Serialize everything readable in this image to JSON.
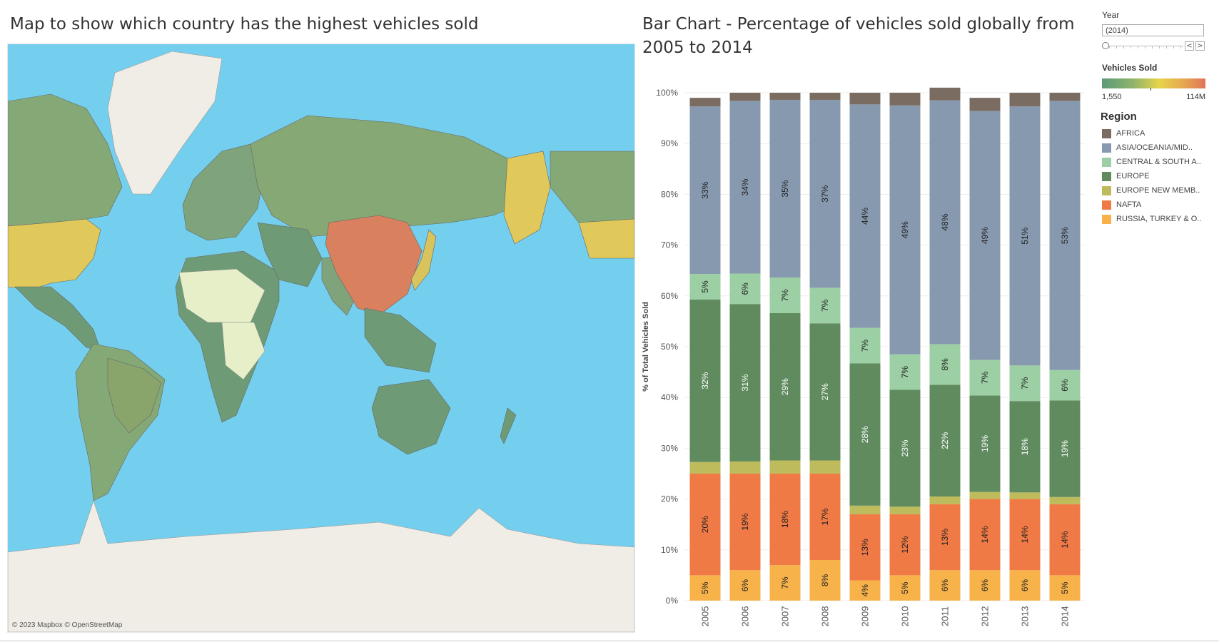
{
  "map": {
    "title": "Map to show which country has the highest vehicles sold",
    "attribution": "© 2023 Mapbox © OpenStreetMap"
  },
  "controls": {
    "year_label": "Year",
    "year_value": "(2014)",
    "prev_symbol": "<",
    "next_symbol": ">",
    "vehicles_sold_label": "Vehicles Sold",
    "vehicles_sold_min": "1,550",
    "vehicles_sold_max": "114M",
    "ramp_colors": [
      "#5b9a78",
      "#8fb36b",
      "#e6d44a",
      "#e6a650",
      "#e0735a"
    ]
  },
  "legend": {
    "title": "Region",
    "items": [
      {
        "label": "AFRICA",
        "color": "#7b6c62"
      },
      {
        "label": "ASIA/OCEANIA/MID..",
        "color": "#8799af"
      },
      {
        "label": "CENTRAL & SOUTH A..",
        "color": "#9ccfa3"
      },
      {
        "label": "EUROPE",
        "color": "#5f8b5f"
      },
      {
        "label": "EUROPE NEW MEMB..",
        "color": "#bdbb5c"
      },
      {
        "label": "NAFTA",
        "color": "#f07a45"
      },
      {
        "label": "RUSSIA, TURKEY & O..",
        "color": "#f8b24a"
      }
    ]
  },
  "chart_data": {
    "type": "bar",
    "stacked": true,
    "title": "Bar Chart - Percentage of vehicles sold globally from 2005 to 2014",
    "xlabel": "",
    "ylabel": "% of Total Vehicles Sold",
    "ylim": [
      0,
      100
    ],
    "yticks": [
      "0%",
      "10%",
      "20%",
      "30%",
      "40%",
      "50%",
      "60%",
      "70%",
      "80%",
      "90%",
      "100%"
    ],
    "categories": [
      "2005",
      "2006",
      "2007",
      "2008",
      "2009",
      "2010",
      "2011",
      "2012",
      "2013",
      "2014"
    ],
    "series": [
      {
        "name": "RUSSIA, TURKEY & O..",
        "color": "#f8b24a",
        "values": [
          5,
          6,
          7,
          8,
          4,
          5,
          6,
          6,
          6,
          5
        ],
        "labels": [
          "5%",
          "6%",
          "7%",
          "8%",
          "4%",
          "5%",
          "6%",
          "6%",
          "6%",
          "5%"
        ]
      },
      {
        "name": "NAFTA",
        "color": "#f07a45",
        "values": [
          20,
          19,
          18,
          17,
          13,
          12,
          13,
          14,
          14,
          14
        ],
        "labels": [
          "20%",
          "19%",
          "18%",
          "17%",
          "13%",
          "12%",
          "13%",
          "14%",
          "14%",
          "14%"
        ]
      },
      {
        "name": "EUROPE NEW MEMB..",
        "color": "#bdbb5c",
        "values": [
          2.3,
          2.4,
          2.6,
          2.6,
          1.7,
          1.5,
          1.5,
          1.4,
          1.3,
          1.4
        ],
        "labels": [
          "",
          "",
          "",
          "",
          "",
          "",
          "",
          "",
          "",
          ""
        ]
      },
      {
        "name": "EUROPE",
        "color": "#5f8b5f",
        "values": [
          32,
          31,
          29,
          27,
          28,
          23,
          22,
          19,
          18,
          19
        ],
        "labels": [
          "32%",
          "31%",
          "29%",
          "27%",
          "28%",
          "23%",
          "22%",
          "19%",
          "18%",
          "19%"
        ]
      },
      {
        "name": "CENTRAL & SOUTH A..",
        "color": "#9ccfa3",
        "values": [
          5,
          6,
          7,
          7,
          7,
          7,
          8,
          7,
          7,
          6
        ],
        "labels": [
          "5%",
          "6%",
          "7%",
          "7%",
          "7%",
          "7%",
          "8%",
          "7%",
          "7%",
          "6%"
        ]
      },
      {
        "name": "ASIA/OCEANIA/MID..",
        "color": "#8799af",
        "values": [
          33,
          34,
          35,
          37,
          44,
          49,
          48,
          49,
          51,
          53
        ],
        "labels": [
          "33%",
          "34%",
          "35%",
          "37%",
          "44%",
          "49%",
          "48%",
          "49%",
          "51%",
          "53%"
        ]
      },
      {
        "name": "AFRICA",
        "color": "#7b6c62",
        "values": [
          1.7,
          1.6,
          1.4,
          1.4,
          2.3,
          2.5,
          2.5,
          2.6,
          2.7,
          1.6
        ],
        "labels": [
          "",
          "",
          "",
          "",
          "",
          "",
          "",
          "",
          "",
          ""
        ]
      }
    ]
  }
}
